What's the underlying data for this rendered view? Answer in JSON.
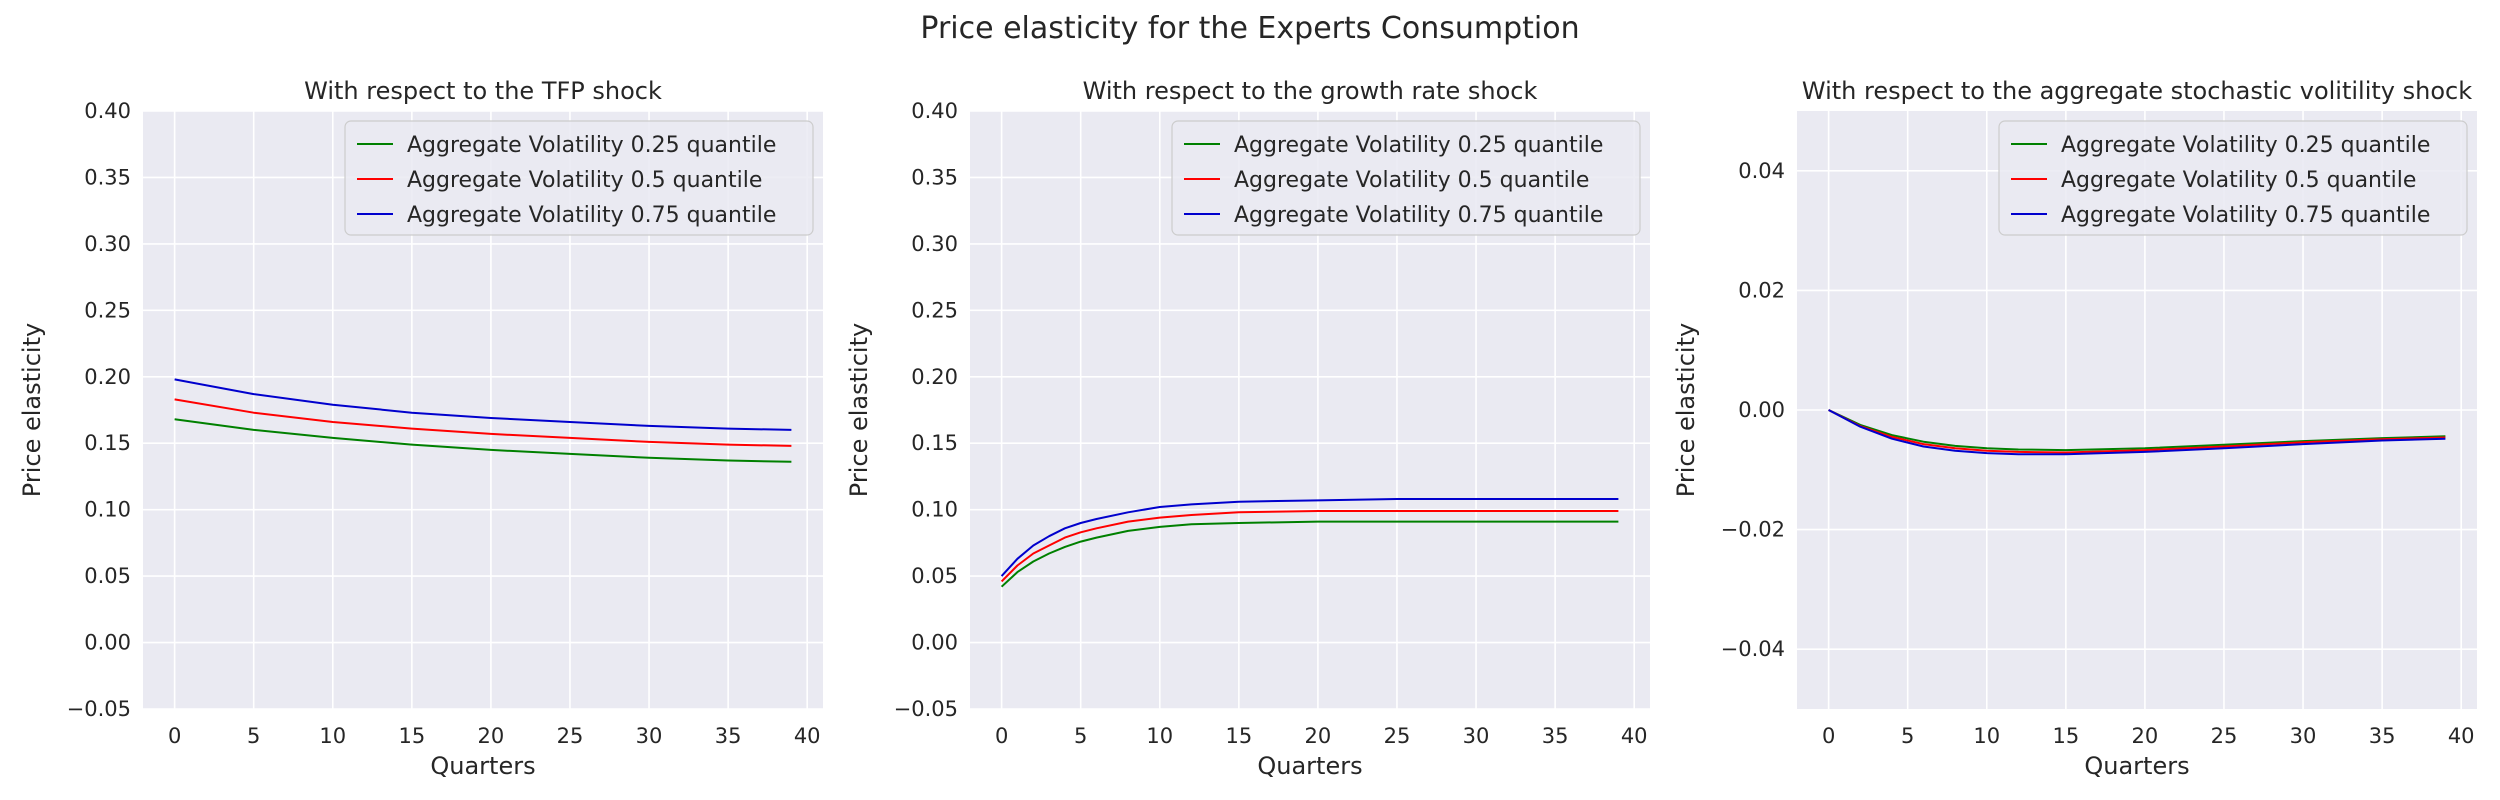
{
  "figure": {
    "suptitle": "Price elasticity for the Experts Consumption"
  },
  "colors": {
    "background": "#eaeaf2",
    "grid": "#ffffff",
    "text": "#262626",
    "series": [
      "#008000",
      "#ff0000",
      "#0000cd"
    ]
  },
  "chart_data": [
    {
      "type": "line",
      "title": "With respect to the TFP shock",
      "xlabel": "Quarters",
      "ylabel": "Price elasticity",
      "xlim": [
        -2,
        41
      ],
      "ylim": [
        -0.05,
        0.4
      ],
      "xticks": [
        0,
        5,
        10,
        15,
        20,
        25,
        30,
        35,
        40
      ],
      "yticks": [
        -0.05,
        0.0,
        0.05,
        0.1,
        0.15,
        0.2,
        0.25,
        0.3,
        0.35,
        0.4
      ],
      "ytick_labels": [
        "−0.05",
        "0.00",
        "0.05",
        "0.10",
        "0.15",
        "0.20",
        "0.25",
        "0.30",
        "0.35",
        "0.40"
      ],
      "grid": true,
      "legend": "top-right",
      "x": [
        0,
        5,
        10,
        15,
        20,
        25,
        30,
        35,
        39
      ],
      "series": [
        {
          "name": "Aggregate Volatility 0.25 quantile",
          "values": [
            0.168,
            0.16,
            0.154,
            0.149,
            0.145,
            0.142,
            0.139,
            0.137,
            0.136
          ]
        },
        {
          "name": "Aggregate Volatility 0.5 quantile",
          "values": [
            0.183,
            0.173,
            0.166,
            0.161,
            0.157,
            0.154,
            0.151,
            0.149,
            0.148
          ]
        },
        {
          "name": "Aggregate Volatility 0.75 quantile",
          "values": [
            0.198,
            0.187,
            0.179,
            0.173,
            0.169,
            0.166,
            0.163,
            0.161,
            0.16
          ]
        }
      ]
    },
    {
      "type": "line",
      "title": "With respect to the growth rate shock",
      "xlabel": "Quarters",
      "ylabel": "Price elasticity",
      "xlim": [
        -2,
        41
      ],
      "ylim": [
        -0.05,
        0.4
      ],
      "xticks": [
        0,
        5,
        10,
        15,
        20,
        25,
        30,
        35,
        40
      ],
      "yticks": [
        -0.05,
        0.0,
        0.05,
        0.1,
        0.15,
        0.2,
        0.25,
        0.3,
        0.35,
        0.4
      ],
      "ytick_labels": [
        "−0.05",
        "0.00",
        "0.05",
        "0.10",
        "0.15",
        "0.20",
        "0.25",
        "0.30",
        "0.35",
        "0.40"
      ],
      "grid": true,
      "legend": "top-right",
      "x": [
        0,
        1,
        2,
        3,
        4,
        5,
        6,
        8,
        10,
        12,
        15,
        20,
        25,
        30,
        35,
        39
      ],
      "series": [
        {
          "name": "Aggregate Volatility 0.25 quantile",
          "values": [
            0.042,
            0.053,
            0.061,
            0.067,
            0.072,
            0.076,
            0.079,
            0.084,
            0.087,
            0.089,
            0.09,
            0.091,
            0.091,
            0.091,
            0.091,
            0.091
          ]
        },
        {
          "name": "Aggregate Volatility 0.5 quantile",
          "values": [
            0.046,
            0.058,
            0.067,
            0.073,
            0.079,
            0.083,
            0.086,
            0.091,
            0.094,
            0.096,
            0.098,
            0.099,
            0.099,
            0.099,
            0.099,
            0.099
          ]
        },
        {
          "name": "Aggregate Volatility 0.75 quantile",
          "values": [
            0.05,
            0.063,
            0.073,
            0.08,
            0.086,
            0.09,
            0.093,
            0.098,
            0.102,
            0.104,
            0.106,
            0.107,
            0.108,
            0.108,
            0.108,
            0.108
          ]
        }
      ]
    },
    {
      "type": "line",
      "title": "With respect to the aggregate stochastic volitility shock",
      "xlabel": "Quarters",
      "ylabel": "Price elasticity",
      "xlim": [
        -2,
        41
      ],
      "ylim": [
        -0.05,
        0.05
      ],
      "xticks": [
        0,
        5,
        10,
        15,
        20,
        25,
        30,
        35,
        40
      ],
      "yticks": [
        -0.04,
        -0.02,
        0.0,
        0.02,
        0.04
      ],
      "ytick_labels": [
        "−0.04",
        "−0.02",
        "0.00",
        "0.02",
        "0.04"
      ],
      "grid": true,
      "legend": "top-right",
      "x": [
        0,
        2,
        4,
        6,
        8,
        10,
        12,
        15,
        20,
        25,
        30,
        35,
        39
      ],
      "series": [
        {
          "name": "Aggregate Volatility 0.25 quantile",
          "values": [
            0.0,
            -0.0025,
            -0.0042,
            -0.0053,
            -0.006,
            -0.0064,
            -0.0066,
            -0.0067,
            -0.0064,
            -0.0058,
            -0.0052,
            -0.0047,
            -0.0044
          ]
        },
        {
          "name": "Aggregate Volatility 0.5 quantile",
          "values": [
            0.0,
            -0.0027,
            -0.0045,
            -0.0057,
            -0.0064,
            -0.0068,
            -0.007,
            -0.0071,
            -0.0067,
            -0.0061,
            -0.0054,
            -0.0049,
            -0.0046
          ]
        },
        {
          "name": "Aggregate Volatility 0.75 quantile",
          "values": [
            0.0,
            -0.0028,
            -0.0048,
            -0.0061,
            -0.0068,
            -0.0072,
            -0.0074,
            -0.0074,
            -0.007,
            -0.0064,
            -0.0057,
            -0.0051,
            -0.0048
          ]
        }
      ]
    }
  ]
}
